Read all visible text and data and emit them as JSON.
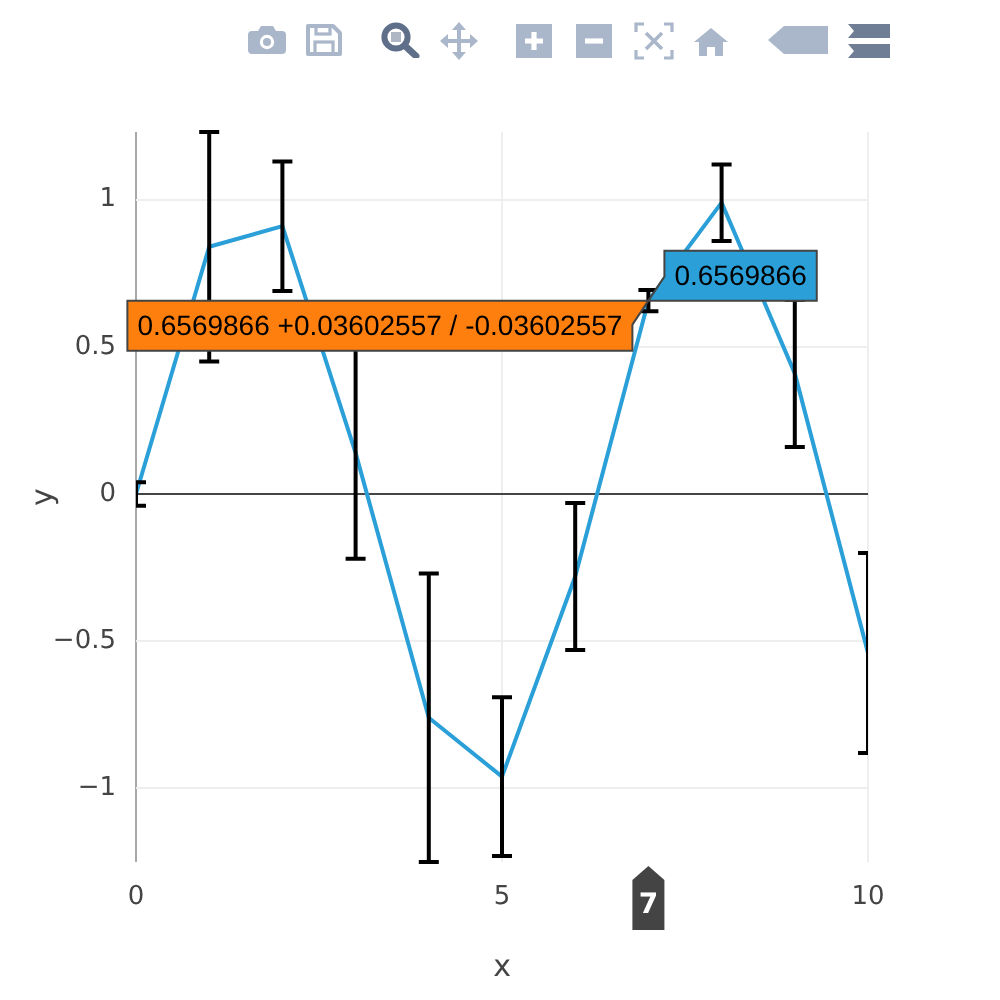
{
  "chart_data": {
    "type": "line",
    "x": [
      0,
      1,
      2,
      3,
      4,
      5,
      6,
      7,
      8,
      9,
      10
    ],
    "values": [
      0,
      0.84,
      0.91,
      0.14,
      -0.76,
      -0.96,
      -0.28,
      0.6569866,
      0.99,
      0.41,
      -0.54
    ],
    "errors": [
      0.04,
      0.39,
      0.22,
      0.36,
      0.49,
      0.27,
      0.25,
      0.03602557,
      0.13,
      0.25,
      0.34
    ],
    "color": "#2a9fd8",
    "xlabel": "x",
    "ylabel": "y",
    "xlim": [
      0,
      10
    ],
    "ylim": [
      -1.25,
      1.23
    ],
    "xticks": [
      0,
      5,
      10
    ],
    "yticks": [
      {
        "value": -1,
        "label": "−1"
      },
      {
        "value": -0.5,
        "label": "−0.5"
      },
      0,
      0.5,
      1
    ],
    "grid": true,
    "marker": "none",
    "annotations": [
      {
        "text": "0.6569866",
        "x": 7,
        "y": 0.6569866
      },
      {
        "text": "0.6569866 +0.03602557 / -0.03602557",
        "x": 7,
        "y": 0.6569866
      },
      "7"
    ]
  }
}
